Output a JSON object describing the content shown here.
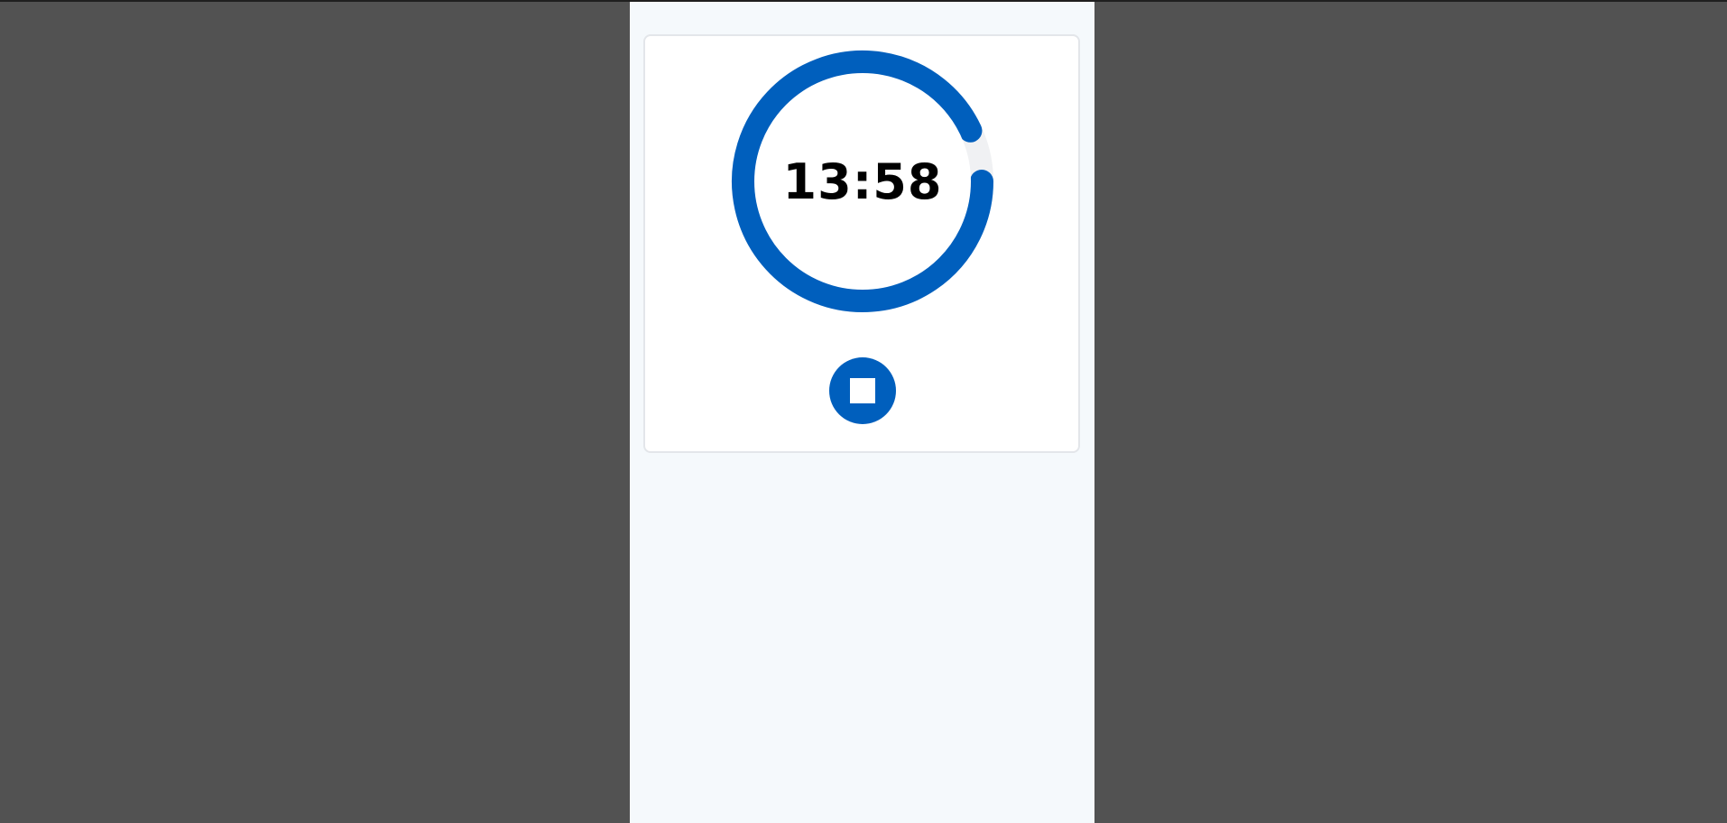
{
  "timer": {
    "time_display": "13:58",
    "progress_fraction": 0.93,
    "accent_color": "#005fbd",
    "track_color": "#f0f1f3"
  },
  "controls": {
    "stop_icon": "stop-icon"
  },
  "colors": {
    "backdrop": "#525252",
    "panel": "#f5f9fc",
    "card": "#ffffff"
  }
}
